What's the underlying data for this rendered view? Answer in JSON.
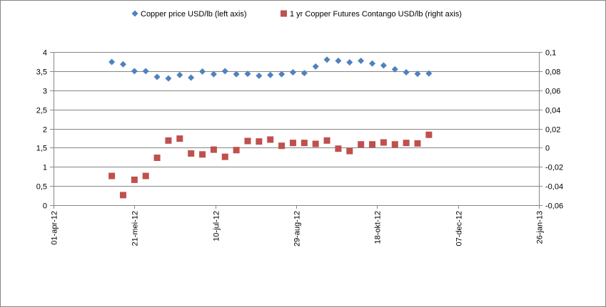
{
  "chart_data": {
    "type": "scatter",
    "title": "",
    "colors": {
      "copper": "#4F81BD",
      "contango": "#C0504D",
      "grid": "#868686",
      "axis": "#868686"
    },
    "legend": {
      "placement": "top-center",
      "entries": [
        {
          "name": "Copper price USD/lb (left axis)",
          "marker": "diamond",
          "color": "#4F81BD"
        },
        {
          "name": "1 yr Copper Futures Contango USD/lb (right axis)",
          "marker": "square",
          "color": "#C0504D"
        }
      ]
    },
    "x_axis": {
      "type": "date",
      "range": [
        "2012-04-01",
        "2013-01-26"
      ],
      "ticks": [
        {
          "date": "2012-04-01",
          "label": "01-apr-12"
        },
        {
          "date": "2012-05-21",
          "label": "21-mei-12"
        },
        {
          "date": "2012-07-10",
          "label": "10-jul-12"
        },
        {
          "date": "2012-08-29",
          "label": "29-aug-12"
        },
        {
          "date": "2012-10-18",
          "label": "18-okt-12"
        },
        {
          "date": "2012-12-07",
          "label": "07-dec-12"
        },
        {
          "date": "2013-01-26",
          "label": "26-jan-13"
        }
      ]
    },
    "y_left": {
      "range": [
        0,
        4
      ],
      "ticks": [
        {
          "value": 0,
          "label": "0"
        },
        {
          "value": 0.5,
          "label": "0,5"
        },
        {
          "value": 1,
          "label": "1"
        },
        {
          "value": 1.5,
          "label": "1,5"
        },
        {
          "value": 2,
          "label": "2"
        },
        {
          "value": 2.5,
          "label": "2,5"
        },
        {
          "value": 3,
          "label": "3"
        },
        {
          "value": 3.5,
          "label": "3,5"
        },
        {
          "value": 4,
          "label": "4"
        }
      ]
    },
    "y_right": {
      "range": [
        -0.06,
        0.1
      ],
      "ticks": [
        {
          "value": -0.06,
          "label": "-0,06"
        },
        {
          "value": -0.04,
          "label": "-0,04"
        },
        {
          "value": -0.02,
          "label": "-0,02"
        },
        {
          "value": 0,
          "label": "0"
        },
        {
          "value": 0.02,
          "label": "0,02"
        },
        {
          "value": 0.04,
          "label": "0,04"
        },
        {
          "value": 0.06,
          "label": "0,06"
        },
        {
          "value": 0.08,
          "label": "0,08"
        },
        {
          "value": 0.1,
          "label": "0,1"
        }
      ]
    },
    "series": [
      {
        "name": "Copper price USD/lb (left axis)",
        "axis": "left",
        "marker": "diamond",
        "color": "#4F81BD",
        "points": [
          {
            "x": "2012-05-07",
            "y": 3.74
          },
          {
            "x": "2012-05-14",
            "y": 3.68
          },
          {
            "x": "2012-05-21",
            "y": 3.5
          },
          {
            "x": "2012-05-28",
            "y": 3.5
          },
          {
            "x": "2012-06-04",
            "y": 3.35
          },
          {
            "x": "2012-06-11",
            "y": 3.31
          },
          {
            "x": "2012-06-18",
            "y": 3.4
          },
          {
            "x": "2012-06-25",
            "y": 3.33
          },
          {
            "x": "2012-07-02",
            "y": 3.49
          },
          {
            "x": "2012-07-09",
            "y": 3.42
          },
          {
            "x": "2012-07-16",
            "y": 3.5
          },
          {
            "x": "2012-07-23",
            "y": 3.42
          },
          {
            "x": "2012-07-30",
            "y": 3.43
          },
          {
            "x": "2012-08-06",
            "y": 3.38
          },
          {
            "x": "2012-08-13",
            "y": 3.4
          },
          {
            "x": "2012-08-20",
            "y": 3.42
          },
          {
            "x": "2012-08-27",
            "y": 3.47
          },
          {
            "x": "2012-09-03",
            "y": 3.45
          },
          {
            "x": "2012-09-10",
            "y": 3.62
          },
          {
            "x": "2012-09-17",
            "y": 3.8
          },
          {
            "x": "2012-09-24",
            "y": 3.77
          },
          {
            "x": "2012-10-01",
            "y": 3.73
          },
          {
            "x": "2012-10-08",
            "y": 3.77
          },
          {
            "x": "2012-10-15",
            "y": 3.7
          },
          {
            "x": "2012-10-22",
            "y": 3.65
          },
          {
            "x": "2012-10-29",
            "y": 3.55
          },
          {
            "x": "2012-11-05",
            "y": 3.47
          },
          {
            "x": "2012-11-12",
            "y": 3.43
          },
          {
            "x": "2012-11-19",
            "y": 3.44
          }
        ]
      },
      {
        "name": "1 yr Copper Futures Contango USD/lb (right axis)",
        "axis": "right",
        "marker": "square",
        "color": "#C0504D",
        "points": [
          {
            "x": "2012-05-07",
            "y": -0.0295
          },
          {
            "x": "2012-05-14",
            "y": -0.0495
          },
          {
            "x": "2012-05-21",
            "y": -0.0335
          },
          {
            "x": "2012-05-28",
            "y": -0.0295
          },
          {
            "x": "2012-06-04",
            "y": -0.0105
          },
          {
            "x": "2012-06-11",
            "y": 0.0075
          },
          {
            "x": "2012-06-18",
            "y": 0.0095
          },
          {
            "x": "2012-06-25",
            "y": -0.006
          },
          {
            "x": "2012-07-02",
            "y": -0.007
          },
          {
            "x": "2012-07-09",
            "y": -0.002
          },
          {
            "x": "2012-07-16",
            "y": -0.0095
          },
          {
            "x": "2012-07-23",
            "y": -0.0025
          },
          {
            "x": "2012-07-30",
            "y": 0.007
          },
          {
            "x": "2012-08-06",
            "y": 0.0065
          },
          {
            "x": "2012-08-13",
            "y": 0.0085
          },
          {
            "x": "2012-08-20",
            "y": 0.002
          },
          {
            "x": "2012-08-27",
            "y": 0.005
          },
          {
            "x": "2012-09-03",
            "y": 0.005
          },
          {
            "x": "2012-09-10",
            "y": 0.004
          },
          {
            "x": "2012-09-17",
            "y": 0.0075
          },
          {
            "x": "2012-09-24",
            "y": -0.001
          },
          {
            "x": "2012-10-01",
            "y": -0.0035
          },
          {
            "x": "2012-10-08",
            "y": 0.0035
          },
          {
            "x": "2012-10-15",
            "y": 0.0035
          },
          {
            "x": "2012-10-22",
            "y": 0.0055
          },
          {
            "x": "2012-10-29",
            "y": 0.0035
          },
          {
            "x": "2012-11-05",
            "y": 0.005
          },
          {
            "x": "2012-11-12",
            "y": 0.0045
          },
          {
            "x": "2012-11-19",
            "y": 0.0135
          }
        ]
      }
    ]
  }
}
